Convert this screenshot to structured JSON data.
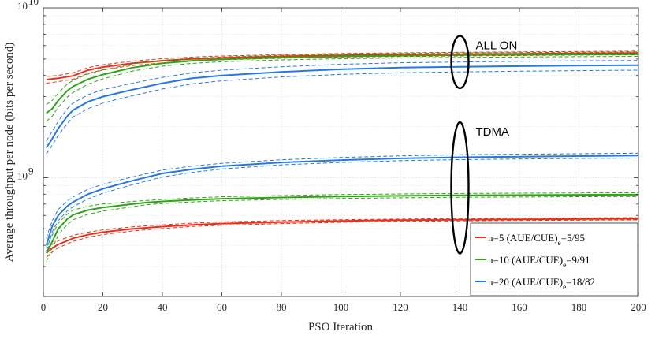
{
  "chart_data": {
    "type": "line",
    "title": "",
    "xlabel": "PSO Iteration",
    "ylabel": "Average throughput per node (bits per second)",
    "xlim": [
      0,
      200
    ],
    "ylim": [
      200000000,
      10000000000
    ],
    "yscale": "log",
    "grid": true,
    "x_ticks": [
      0,
      20,
      40,
      60,
      80,
      100,
      120,
      140,
      160,
      180,
      200
    ],
    "x_tick_labels": [
      "0",
      "20",
      "40",
      "60",
      "80",
      "100",
      "120",
      "140",
      "160",
      "180",
      "200"
    ],
    "y_tick_labels": [
      {
        "value": 1000000000,
        "base": "10",
        "exp": "9"
      },
      {
        "value": 10000000000,
        "base": "10",
        "exp": "10"
      }
    ],
    "legend_position": "bottom-right",
    "annotations": [
      {
        "text": "ALL ON",
        "x": 140,
        "y": 5200000000
      },
      {
        "text": "TDMA",
        "x": 140,
        "y": 870000000
      }
    ],
    "series": [
      {
        "name": "n=5 (AUE/CUE)e=5/95",
        "legend_main": "n=5 (AUE/CUE)",
        "legend_sub": "e",
        "legend_tail": "=5/95",
        "color": "#e8301c",
        "scheme": "ALL ON",
        "x": [
          1,
          5,
          10,
          15,
          20,
          30,
          40,
          50,
          60,
          80,
          100,
          120,
          140,
          160,
          180,
          200
        ],
        "values": [
          3780000000,
          3850000000,
          3980000000,
          4300000000,
          4480000000,
          4720000000,
          4880000000,
          5000000000,
          5080000000,
          5180000000,
          5260000000,
          5300000000,
          5340000000,
          5370000000,
          5400000000,
          5420000000
        ],
        "upper": [
          3950000000,
          4000000000,
          4150000000,
          4450000000,
          4620000000,
          4860000000,
          5020000000,
          5130000000,
          5210000000,
          5310000000,
          5390000000,
          5440000000,
          5480000000,
          5510000000,
          5540000000,
          5560000000
        ],
        "lower": [
          3600000000,
          3680000000,
          3800000000,
          4120000000,
          4320000000,
          4580000000,
          4740000000,
          4870000000,
          4950000000,
          5050000000,
          5130000000,
          5170000000,
          5210000000,
          5240000000,
          5270000000,
          5290000000
        ]
      },
      {
        "name": "n=10 (AUE/CUE)e=9/91",
        "legend_main": "n=10 (AUE/CUE)",
        "legend_sub": "e",
        "legend_tail": "=9/91",
        "color": "#2fa31a",
        "scheme": "ALL ON",
        "x": [
          1,
          3,
          5,
          8,
          10,
          15,
          20,
          30,
          40,
          50,
          60,
          80,
          100,
          120,
          140,
          160,
          180,
          200
        ],
        "values": [
          2400000000,
          2550000000,
          2850000000,
          3250000000,
          3450000000,
          3800000000,
          4050000000,
          4450000000,
          4720000000,
          4880000000,
          4980000000,
          5100000000,
          5180000000,
          5230000000,
          5270000000,
          5300000000,
          5320000000,
          5340000000
        ],
        "upper": [
          2700000000,
          2850000000,
          3150000000,
          3550000000,
          3750000000,
          4080000000,
          4300000000,
          4680000000,
          4920000000,
          5050000000,
          5140000000,
          5260000000,
          5340000000,
          5390000000,
          5430000000,
          5460000000,
          5480000000,
          5500000000
        ],
        "lower": [
          2150000000,
          2300000000,
          2600000000,
          2980000000,
          3180000000,
          3550000000,
          3820000000,
          4250000000,
          4540000000,
          4710000000,
          4820000000,
          4940000000,
          5020000000,
          5070000000,
          5110000000,
          5140000000,
          5160000000,
          5180000000
        ]
      },
      {
        "name": "n=20 (AUE/CUE)e=18/82",
        "legend_main": "n=20 (AUE/CUE)",
        "legend_sub": "e",
        "legend_tail": "=18/82",
        "color": "#2878e0",
        "scheme": "ALL ON",
        "x": [
          1,
          3,
          5,
          8,
          10,
          15,
          20,
          25,
          30,
          40,
          50,
          60,
          80,
          100,
          120,
          140,
          160,
          180,
          200
        ],
        "values": [
          1500000000,
          1700000000,
          1950000000,
          2300000000,
          2500000000,
          2800000000,
          3000000000,
          3150000000,
          3300000000,
          3600000000,
          3850000000,
          4000000000,
          4200000000,
          4350000000,
          4450000000,
          4500000000,
          4540000000,
          4580000000,
          4600000000
        ],
        "upper": [
          1650000000,
          1880000000,
          2150000000,
          2550000000,
          2750000000,
          3080000000,
          3300000000,
          3450000000,
          3600000000,
          3900000000,
          4150000000,
          4300000000,
          4500000000,
          4650000000,
          4750000000,
          4800000000,
          4850000000,
          4880000000,
          4900000000
        ],
        "lower": [
          1380000000,
          1550000000,
          1780000000,
          2080000000,
          2280000000,
          2550000000,
          2750000000,
          2900000000,
          3040000000,
          3330000000,
          3570000000,
          3720000000,
          3920000000,
          4060000000,
          4150000000,
          4200000000,
          4240000000,
          4270000000,
          4300000000
        ]
      },
      {
        "name": "n=5 TDMA",
        "color": "#e8301c",
        "scheme": "TDMA",
        "x": [
          1,
          3,
          5,
          8,
          10,
          15,
          20,
          30,
          40,
          50,
          60,
          80,
          100,
          120,
          140,
          160,
          180,
          200
        ],
        "values": [
          360000000,
          385000000,
          405000000,
          425000000,
          440000000,
          462000000,
          478000000,
          500000000,
          515000000,
          528000000,
          537000000,
          548000000,
          556000000,
          562000000,
          566000000,
          569000000,
          571000000,
          573000000
        ],
        "upper": [
          385000000,
          405000000,
          425000000,
          445000000,
          458000000,
          478000000,
          493000000,
          514000000,
          528000000,
          540000000,
          549000000,
          559000000,
          566000000,
          571000000,
          575000000,
          578000000,
          580000000,
          582000000
        ],
        "lower": [
          340000000,
          365000000,
          387000000,
          407000000,
          422000000,
          446000000,
          463000000,
          486000000,
          502000000,
          516000000,
          525000000,
          537000000,
          546000000,
          553000000,
          557000000,
          560000000,
          562000000,
          564000000
        ]
      },
      {
        "name": "n=10 TDMA",
        "color": "#2fa31a",
        "scheme": "TDMA",
        "x": [
          1,
          3,
          5,
          8,
          10,
          15,
          20,
          30,
          35,
          40,
          50,
          60,
          80,
          100,
          120,
          140,
          160,
          180,
          200
        ],
        "values": [
          360000000,
          420000000,
          500000000,
          570000000,
          605000000,
          645000000,
          668000000,
          700000000,
          715000000,
          725000000,
          740000000,
          752000000,
          765000000,
          775000000,
          782000000,
          787000000,
          790000000,
          793000000,
          795000000
        ],
        "upper": [
          390000000,
          460000000,
          540000000,
          610000000,
          645000000,
          680000000,
          700000000,
          725000000,
          735000000,
          745000000,
          760000000,
          772000000,
          786000000,
          796000000,
          803000000,
          808000000,
          811000000,
          814000000,
          816000000
        ],
        "lower": [
          320000000,
          385000000,
          460000000,
          530000000,
          565000000,
          610000000,
          636000000,
          675000000,
          695000000,
          705000000,
          720000000,
          732000000,
          745000000,
          755000000,
          762000000,
          767000000,
          770000000,
          773000000,
          775000000
        ]
      },
      {
        "name": "n=20 TDMA",
        "color": "#2878e0",
        "scheme": "TDMA",
        "x": [
          1,
          3,
          5,
          8,
          10,
          15,
          20,
          25,
          30,
          40,
          50,
          60,
          80,
          100,
          120,
          140,
          160,
          180,
          200
        ],
        "values": [
          400000000,
          520000000,
          600000000,
          680000000,
          720000000,
          800000000,
          860000000,
          910000000,
          960000000,
          1060000000,
          1120000000,
          1170000000,
          1230000000,
          1270000000,
          1300000000,
          1320000000,
          1330000000,
          1340000000,
          1350000000
        ],
        "upper": [
          440000000,
          560000000,
          650000000,
          730000000,
          770000000,
          855000000,
          915000000,
          965000000,
          1010000000,
          1110000000,
          1170000000,
          1215000000,
          1275000000,
          1315000000,
          1345000000,
          1365000000,
          1375000000,
          1385000000,
          1395000000
        ],
        "lower": [
          370000000,
          480000000,
          560000000,
          635000000,
          675000000,
          750000000,
          810000000,
          860000000,
          910000000,
          1010000000,
          1075000000,
          1125000000,
          1190000000,
          1230000000,
          1260000000,
          1278000000,
          1288000000,
          1298000000,
          1305000000
        ]
      }
    ]
  }
}
